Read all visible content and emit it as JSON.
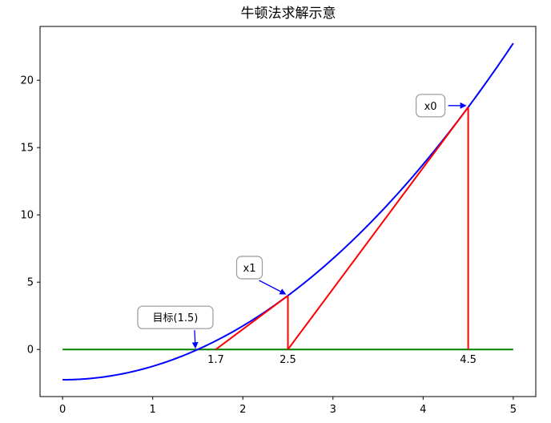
{
  "chart_data": {
    "type": "line",
    "title": "牛顿法求解示意",
    "xlabel": "",
    "ylabel": "",
    "xlim": [
      -0.25,
      5.25
    ],
    "ylim": [
      -3.5,
      24.0
    ],
    "xticks": [
      0,
      1,
      2,
      3,
      4,
      5
    ],
    "yticks": [
      0,
      5,
      10,
      15,
      20
    ],
    "grid": false,
    "colors": {
      "curve": "#0000ff",
      "newton": "#ff0000",
      "zero_line": "#008000",
      "annot_border": "#999999"
    },
    "curve": {
      "formula": "x^2 - 2.25",
      "x": [
        0,
        0.25,
        0.5,
        0.75,
        1.0,
        1.25,
        1.5,
        1.75,
        2.0,
        2.25,
        2.5,
        2.75,
        3.0,
        3.25,
        3.5,
        3.75,
        4.0,
        4.25,
        4.5,
        4.75,
        5.0
      ],
      "y": [
        -2.25,
        -2.1875,
        -2.0,
        -1.6875,
        -1.25,
        -0.6875,
        0.0,
        0.8125,
        1.75,
        2.8125,
        4.0,
        5.3125,
        6.75,
        8.3125,
        10.0,
        11.8125,
        13.75,
        15.8125,
        18.0,
        20.3125,
        22.75
      ]
    },
    "zero_line": {
      "x": [
        0,
        5
      ],
      "y": [
        0,
        0
      ]
    },
    "newton_path": [
      {
        "x": 4.5,
        "y": 0
      },
      {
        "x": 4.5,
        "y": 18
      },
      {
        "x": 2.5,
        "y": 0
      },
      {
        "x": 2.5,
        "y": 4
      },
      {
        "x": 1.7,
        "y": 0
      }
    ],
    "x_value_labels": [
      {
        "x": 1.7,
        "text": "1.7"
      },
      {
        "x": 2.5,
        "text": "2.5"
      },
      {
        "x": 4.5,
        "text": "4.5"
      }
    ],
    "annotations": [
      {
        "text": "x0",
        "point": [
          4.5,
          18
        ]
      },
      {
        "text": "x1",
        "point": [
          2.5,
          4
        ]
      },
      {
        "text": "目标(1.5)",
        "point": [
          1.5,
          0
        ]
      }
    ]
  }
}
